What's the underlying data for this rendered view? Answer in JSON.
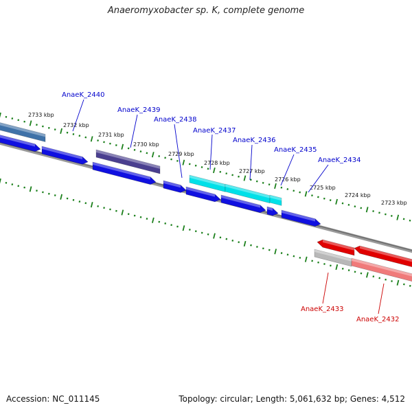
{
  "title": "Anaeromyxobacter sp. K, complete genome",
  "footer": {
    "accession": "Accession: NC_011145",
    "stats": "Topology: circular; Length: 5,061,632 bp; Genes: 4,512"
  },
  "colors": {
    "forward_label": "#0000cc",
    "reverse_label": "#cc0000",
    "tick": "#1a7f1a",
    "backbone": "#777777",
    "cds_blue": "#1010e0",
    "cds_cyan": "#00e0e8",
    "cds_purple": "#4a3f8f",
    "cds_steel": "#3f72a8",
    "cds_red": "#e00000",
    "cds_pink": "#f07a7a",
    "cds_gray": "#b8b8b8"
  },
  "scale_labels": [
    "2733 kbp",
    "2732 kbp",
    "2731 kbp",
    "2730 kbp",
    "2729 kbp",
    "2728 kbp",
    "2727 kbp",
    "2726 kbp",
    "2725 kbp",
    "2724 kbp",
    "2723 kbp"
  ],
  "forward_genes": [
    "AnaeK_2440",
    "AnaeK_2439",
    "AnaeK_2438",
    "AnaeK_2437",
    "AnaeK_2436",
    "AnaeK_2435",
    "AnaeK_2434"
  ],
  "reverse_genes": [
    "AnaeK_2433",
    "AnaeK_2432"
  ]
}
